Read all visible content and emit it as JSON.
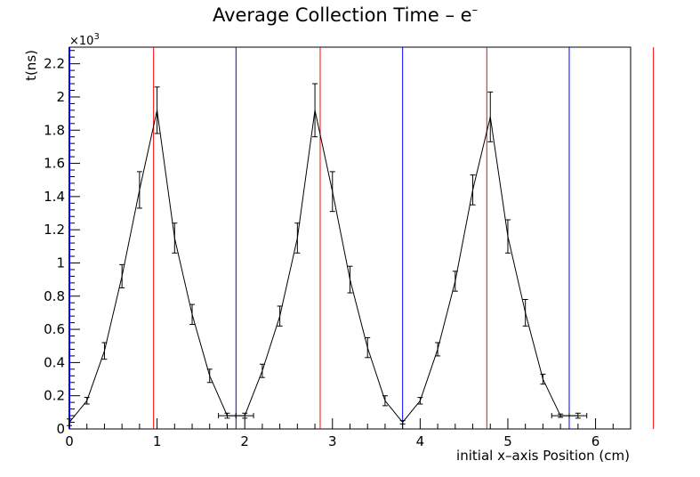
{
  "chart_data": {
    "type": "line",
    "title": "Average Collection Time – e",
    "title_superscript": "–",
    "xlabel": "initial x–axis Position (cm)",
    "ylabel": "t(ns)",
    "y_multiplier_label": "×10",
    "y_multiplier_exponent": "3",
    "xlim": [
      0,
      6.4
    ],
    "ylim": [
      0,
      2300
    ],
    "x_ticks": [
      0,
      1,
      2,
      3,
      4,
      5,
      6
    ],
    "x_tick_labels": [
      "0",
      "1",
      "2",
      "3",
      "4",
      "5",
      "6"
    ],
    "y_ticks": [
      0,
      200,
      400,
      600,
      800,
      1000,
      1200,
      1400,
      1600,
      1800,
      2000,
      2200
    ],
    "y_tick_labels": [
      "0",
      "0.2",
      "0.4",
      "0.6",
      "0.8",
      "1",
      "1.2",
      "1.4",
      "1.6",
      "1.8",
      "2",
      "2.2"
    ],
    "series": [
      {
        "name": "average collection time",
        "color": "#000000",
        "x": [
          0.0,
          0.2,
          0.4,
          0.6,
          0.8,
          1.0,
          1.2,
          1.4,
          1.6,
          1.8,
          2.0,
          2.2,
          2.4,
          2.6,
          2.8,
          3.0,
          3.2,
          3.4,
          3.6,
          3.8,
          4.0,
          4.2,
          4.4,
          4.6,
          4.8,
          5.0,
          5.2,
          5.4,
          5.6,
          5.8
        ],
        "y": [
          40,
          170,
          470,
          920,
          1440,
          1920,
          1150,
          690,
          320,
          80,
          80,
          350,
          680,
          1150,
          1920,
          1430,
          900,
          490,
          170,
          40,
          170,
          480,
          890,
          1440,
          1880,
          1160,
          700,
          300,
          80,
          80
        ],
        "y_err": [
          20,
          20,
          50,
          70,
          110,
          140,
          90,
          60,
          40,
          15,
          15,
          40,
          60,
          90,
          160,
          120,
          80,
          60,
          30,
          10,
          20,
          40,
          60,
          90,
          150,
          100,
          80,
          30,
          10,
          15
        ],
        "x_err": [
          0,
          0,
          0,
          0,
          0,
          0,
          0,
          0,
          0,
          0.1,
          0.1,
          0,
          0,
          0,
          0,
          0,
          0,
          0,
          0,
          0,
          0,
          0,
          0,
          0,
          0,
          0,
          0,
          0,
          0.1,
          0.1
        ]
      }
    ],
    "vertical_lines": [
      {
        "x": 0.96,
        "color": "#ff0000"
      },
      {
        "x": 1.9,
        "color": "#0000ff"
      },
      {
        "x": 2.86,
        "color": "#ff0000"
      },
      {
        "x": 3.8,
        "color": "#0000ff"
      },
      {
        "x": 4.76,
        "color": "#ff0000"
      },
      {
        "x": 5.7,
        "color": "#0000ff"
      },
      {
        "x": 6.66,
        "color": "#ff0000"
      }
    ],
    "y_axis_color": "#0000ff"
  }
}
